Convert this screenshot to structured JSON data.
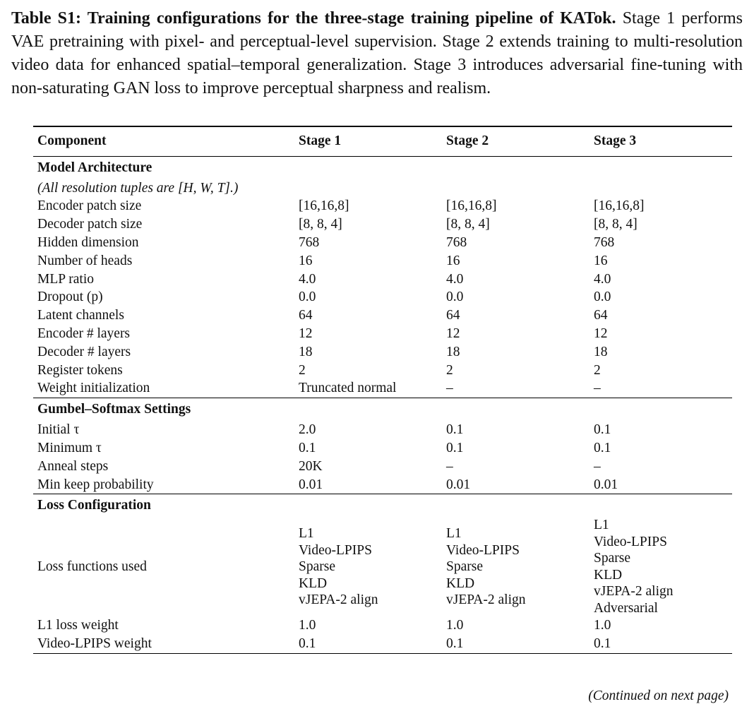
{
  "caption": {
    "title": "Table S1: Training configurations for the three-stage training pipeline of KATok.",
    "text": "Stage 1 performs VAE pretraining with pixel- and perceptual-level supervision. Stage 2 extends training to multi-resolution video data for enhanced spatial–temporal generalization. Stage 3 introduces adversarial fine-tuning with non-saturating GAN loss to improve perceptual sharpness and realism."
  },
  "table": {
    "columns": [
      "Component",
      "Stage 1",
      "Stage 2",
      "Stage 3"
    ],
    "sections": [
      {
        "title": "Model Architecture",
        "note": "(All resolution tuples are [H, W, T].)",
        "rows": [
          [
            "Encoder patch size",
            "[16,16,8]",
            "[16,16,8]",
            "[16,16,8]"
          ],
          [
            "Decoder patch size",
            "[8, 8, 4]",
            "[8, 8, 4]",
            "[8, 8, 4]"
          ],
          [
            "Hidden dimension",
            "768",
            "768",
            "768"
          ],
          [
            "Number of heads",
            "16",
            "16",
            "16"
          ],
          [
            "MLP ratio",
            "4.0",
            "4.0",
            "4.0"
          ],
          [
            "Dropout (p)",
            "0.0",
            "0.0",
            "0.0"
          ],
          [
            "Latent channels",
            "64",
            "64",
            "64"
          ],
          [
            "Encoder # layers",
            "12",
            "12",
            "12"
          ],
          [
            "Decoder # layers",
            "18",
            "18",
            "18"
          ],
          [
            "Register tokens",
            "2",
            "2",
            "2"
          ],
          [
            "Weight initialization",
            "Truncated normal",
            "–",
            "–"
          ]
        ]
      },
      {
        "title": "Gumbel–Softmax Settings",
        "rows": [
          [
            "Initial τ",
            "2.0",
            "0.1",
            "0.1"
          ],
          [
            "Minimum τ",
            "0.1",
            "0.1",
            "0.1"
          ],
          [
            "Anneal steps",
            "20K",
            "–",
            "–"
          ],
          [
            "Min keep probability",
            "0.01",
            "0.01",
            "0.01"
          ]
        ]
      },
      {
        "title": "Loss Configuration",
        "rows": [
          [
            "Loss functions used",
            [
              "L1",
              "Video-LPIPS",
              "Sparse",
              "KLD",
              "vJEPA-2 align"
            ],
            [
              "L1",
              "Video-LPIPS",
              "Sparse",
              "KLD",
              "vJEPA-2 align"
            ],
            [
              "L1",
              "Video-LPIPS",
              "Sparse",
              "KLD",
              "vJEPA-2 align",
              "Adversarial"
            ]
          ],
          [
            "L1 loss weight",
            "1.0",
            "1.0",
            "1.0"
          ],
          [
            "Video-LPIPS weight",
            "0.1",
            "0.1",
            "0.1"
          ]
        ]
      }
    ]
  },
  "footer": "(Continued on next page)"
}
